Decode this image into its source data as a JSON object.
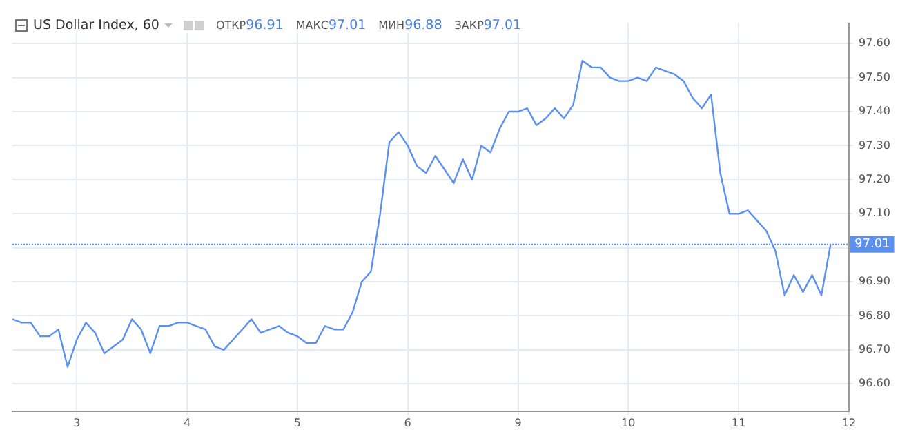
{
  "chart_data": {
    "type": "line",
    "title": "US Dollar Index, 60",
    "annotations": [
      "ОТКР96.91",
      "МАКС97.01",
      "МИН96.88",
      "ЗАКР97.01"
    ],
    "categories": [
      null,
      null,
      null,
      null,
      null,
      null,
      null,
      "3",
      null,
      null,
      null,
      null,
      null,
      null,
      null,
      null,
      null,
      null,
      null,
      "4",
      null,
      null,
      null,
      null,
      null,
      null,
      null,
      null,
      null,
      null,
      null,
      "5",
      null,
      null,
      null,
      null,
      null,
      null,
      null,
      null,
      null,
      null,
      null,
      "6",
      null,
      null,
      null,
      null,
      null,
      null,
      null,
      null,
      null,
      null,
      null,
      "9",
      null,
      null,
      null,
      null,
      null,
      null,
      null,
      null,
      null,
      null,
      null,
      "10",
      null,
      null,
      null,
      null,
      null,
      null,
      null,
      null,
      null,
      null,
      null,
      "11",
      null,
      null,
      null,
      null,
      null,
      null,
      null,
      null,
      null,
      null,
      null,
      "12"
    ],
    "series": [
      {
        "color": "#5b8ff0",
        "values": [
          96.79,
          96.78,
          96.78,
          96.74,
          96.74,
          96.76,
          96.65,
          96.73,
          96.78,
          96.75,
          96.69,
          96.71,
          96.73,
          96.79,
          96.76,
          96.69,
          96.77,
          96.77,
          96.78,
          96.78,
          96.77,
          96.76,
          96.71,
          96.7,
          96.73,
          96.76,
          96.79,
          96.75,
          96.76,
          96.77,
          96.75,
          96.74,
          96.72,
          96.72,
          96.77,
          96.76,
          96.76,
          96.81,
          96.9,
          96.93,
          97.1,
          97.31,
          97.34,
          97.3,
          97.24,
          97.22,
          97.27,
          97.23,
          97.19,
          97.26,
          97.2,
          97.3,
          97.28,
          97.35,
          97.4,
          97.4,
          97.41,
          97.36,
          97.38,
          97.41,
          97.38,
          97.42,
          97.55,
          97.53,
          97.53,
          97.5,
          97.49,
          97.49,
          97.5,
          97.49,
          97.53,
          97.52,
          97.51,
          97.49,
          97.44,
          97.41,
          97.45,
          97.22,
          97.1,
          97.1,
          97.11,
          97.08,
          97.05,
          96.99,
          96.86,
          96.92,
          96.87,
          96.92,
          96.86,
          97.01,
          null,
          null
        ]
      }
    ],
    "ylim": [
      96.52,
      97.66
    ],
    "yticks": [
      {
        "value": 96.6,
        "label": "96.60"
      },
      {
        "value": 96.7,
        "label": "96.70"
      },
      {
        "value": 96.8,
        "label": "96.80"
      },
      {
        "value": 96.9,
        "label": "96.90"
      },
      {
        "value": 97.0,
        "label": null
      },
      {
        "value": 97.1,
        "label": "97.10"
      },
      {
        "value": 97.2,
        "label": "97.20"
      },
      {
        "value": 97.3,
        "label": "97.30"
      },
      {
        "value": 97.4,
        "label": "97.40"
      },
      {
        "value": 97.5,
        "label": "97.50"
      },
      {
        "value": 97.6,
        "label": "97.60"
      }
    ],
    "grid": true,
    "legend": false,
    "ref_lines": [
      {
        "axis": "y",
        "value": 97.01,
        "label": "97.01",
        "color": "#5b8ff0",
        "line_style": "dotted"
      }
    ]
  }
}
